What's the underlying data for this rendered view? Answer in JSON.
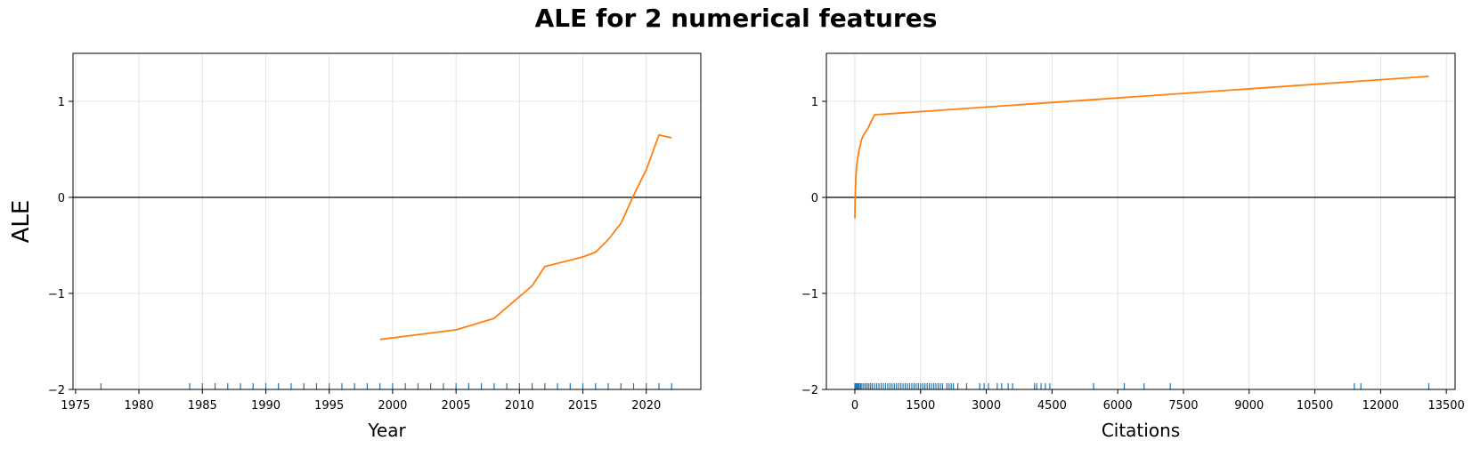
{
  "title": "ALE for 2 numerical features",
  "colors": {
    "line": "#ff7f0e",
    "rug": "#1f77b4",
    "zero_line": "#000000",
    "grid": "#dcdcdc"
  },
  "chart_data": [
    {
      "type": "line",
      "xlabel": "Year",
      "ylabel": "ALE",
      "xlim": [
        1974.8,
        2024.3
      ],
      "ylim": [
        -2,
        1.5
      ],
      "xticks": [
        1975,
        1980,
        1985,
        1990,
        1995,
        2000,
        2005,
        2010,
        2015,
        2020
      ],
      "yticks": [
        -2,
        -1,
        0,
        1
      ],
      "grid": true,
      "series": [
        {
          "x": [
            1999,
            2005,
            2008,
            2011,
            2012,
            2015,
            2016,
            2017,
            2018,
            2019,
            2020,
            2021,
            2022
          ],
          "y": [
            -1.48,
            -1.38,
            -1.26,
            -0.92,
            -0.72,
            -0.62,
            -0.57,
            -0.44,
            -0.27,
            0.02,
            0.29,
            0.65,
            0.62
          ]
        }
      ],
      "rug": [
        1977,
        1984,
        1985,
        1986,
        1987,
        1988,
        1989,
        1990,
        1991,
        1992,
        1993,
        1994,
        1995,
        1996,
        1997,
        1998,
        1999,
        2000,
        2001,
        2002,
        2003,
        2004,
        2005,
        2006,
        2007,
        2008,
        2009,
        2010,
        2011,
        2012,
        2013,
        2014,
        2015,
        2016,
        2017,
        2018,
        2019,
        2020,
        2021,
        2022
      ]
    },
    {
      "type": "line",
      "xlabel": "Citations",
      "ylabel": "",
      "xlim": [
        -650,
        13700
      ],
      "ylim": [
        -2,
        1.5
      ],
      "xticks": [
        0,
        1500,
        3000,
        4500,
        6000,
        7500,
        9000,
        10500,
        12000,
        13500
      ],
      "yticks": [
        -2,
        -1,
        0,
        1
      ],
      "grid": true,
      "series": [
        {
          "x": [
            0,
            5,
            10,
            20,
            40,
            70,
            100,
            150,
            200,
            300,
            450,
            13100
          ],
          "y": [
            -0.22,
            -0.05,
            0.05,
            0.2,
            0.32,
            0.42,
            0.5,
            0.6,
            0.65,
            0.72,
            0.86,
            1.26
          ]
        }
      ],
      "rug": [
        0,
        20,
        40,
        60,
        80,
        100,
        130,
        160,
        200,
        240,
        280,
        320,
        360,
        400,
        450,
        500,
        550,
        600,
        650,
        700,
        750,
        800,
        850,
        900,
        950,
        1000,
        1050,
        1100,
        1150,
        1200,
        1250,
        1300,
        1350,
        1400,
        1450,
        1500,
        1550,
        1600,
        1650,
        1700,
        1750,
        1800,
        1850,
        1900,
        1950,
        2000,
        2100,
        2150,
        2200,
        2250,
        2350,
        2550,
        2850,
        2950,
        3050,
        3250,
        3350,
        3500,
        3600,
        4100,
        4150,
        4250,
        4350,
        4450,
        5450,
        6150,
        6600,
        7200,
        11400,
        11550,
        13100
      ]
    }
  ]
}
